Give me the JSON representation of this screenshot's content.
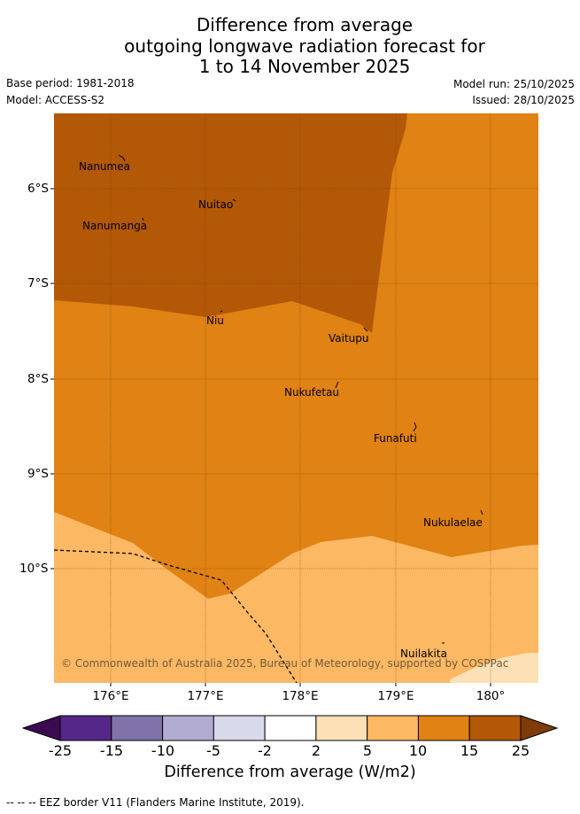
{
  "title": {
    "line1": "Difference from average",
    "line2": "outgoing longwave radiation forecast for",
    "line3": "1 to 14 November 2025"
  },
  "meta": {
    "base_period": "Base period: 1981-2018",
    "model": "Model: ACCESS-S2",
    "model_run": "Model run: 25/10/2025",
    "issued": "Issued: 28/10/2025"
  },
  "map": {
    "lat_labels": [
      "6°S",
      "7°S",
      "8°S",
      "9°S",
      "10°S"
    ],
    "lon_labels": [
      "176°E",
      "177°E",
      "178°E",
      "179°E",
      "180°"
    ],
    "places": [
      "Nanumea",
      "Nuitao",
      "Nanumanga",
      "Niu",
      "Vaitupu",
      "Nukufetau",
      "Funafuti",
      "Nukulaelae",
      "Nuilakita"
    ],
    "copyright": "© Commonwealth of Australia 2025, Bureau of Meteorology, supported by COSPPac",
    "colors": {
      "band_15_25": "#b25806",
      "band_10_15": "#e08214",
      "band_5_10": "#fdb863",
      "band_2_5": "#fee0b6"
    }
  },
  "legend": {
    "ticks": [
      "-25",
      "-15",
      "-10",
      "-5",
      "-2",
      "2",
      "5",
      "10",
      "15",
      "25"
    ],
    "colors": [
      "#3d0a52",
      "#542788",
      "#8073ac",
      "#b2abd2",
      "#d8daeb",
      "#ffffff",
      "#fee0b6",
      "#fdb863",
      "#e08214",
      "#b35806",
      "#7f3b08"
    ],
    "title": "Difference from average (W/m2)"
  },
  "footer": "--  --  -- EEZ border V11 (Flanders Marine Institute, 2019)."
}
